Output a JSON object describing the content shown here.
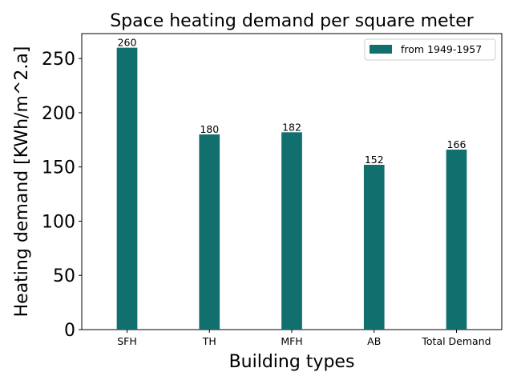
{
  "chart_data": {
    "type": "bar",
    "title": "Space heating demand per square meter",
    "xlabel": "Building types",
    "ylabel": "Heating demand [KWh/m^2.a]",
    "categories": [
      "SFH",
      "TH",
      "MFH",
      "AB",
      "Total Demand"
    ],
    "series": [
      {
        "name": "from 1949-1957",
        "values": [
          260,
          180,
          182,
          152,
          166
        ],
        "color": "#11706e"
      }
    ],
    "data_labels": [
      "260",
      "180",
      "182",
      "152",
      "166"
    ],
    "ylim": [
      0,
      273
    ],
    "yticks": [
      0,
      50,
      100,
      150,
      200,
      250
    ],
    "grid": false,
    "legend_position": "top-right"
  }
}
